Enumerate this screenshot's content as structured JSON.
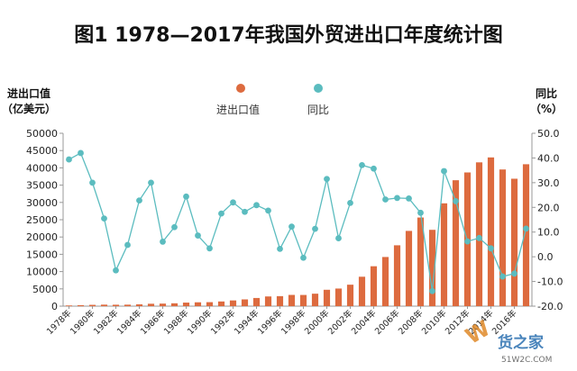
{
  "chart_data": {
    "type": "bar+line",
    "title": "图1  1978—2017年我国外贸进出口年度统计图",
    "ylabel_left": [
      "进出口值",
      "（亿美元）"
    ],
    "ylabel_right": [
      "同比",
      "（%）"
    ],
    "legend": [
      {
        "name": "进出口值",
        "color": "#dd6b3f",
        "marker": "circle"
      },
      {
        "name": "同比",
        "color": "#5bbcbf",
        "marker": "circle"
      }
    ],
    "legend_placement": "top-center",
    "grid": false,
    "ylim_left": [
      0,
      50000
    ],
    "yticks_left": [
      "0",
      "5000",
      "10000",
      "15000",
      "20000",
      "25000",
      "30000",
      "35000",
      "40000",
      "45000",
      "50000"
    ],
    "ylim_right": [
      -20,
      50
    ],
    "yticks_right": [
      "-20.0",
      "-10.0",
      "0.0",
      "10.0",
      "20.0",
      "30.0",
      "40.0",
      "50.0"
    ],
    "x_tick_labels": [
      "1978年",
      "1980年",
      "1982年",
      "1984年",
      "1986年",
      "1988年",
      "1990年",
      "1992年",
      "1994年",
      "1996年",
      "1998年",
      "2000年",
      "2002年",
      "2004年",
      "2006年",
      "2008年",
      "2010年",
      "2012年",
      "2014年",
      "2016年"
    ],
    "years": [
      1978,
      1979,
      1980,
      1981,
      1982,
      1983,
      1984,
      1985,
      1986,
      1987,
      1988,
      1989,
      1990,
      1991,
      1992,
      1993,
      1994,
      1995,
      1996,
      1997,
      1998,
      1999,
      2000,
      2001,
      2002,
      2003,
      2004,
      2005,
      2006,
      2007,
      2008,
      2009,
      2010,
      2011,
      2012,
      2013,
      2014,
      2015,
      2016,
      2017
    ],
    "series": [
      {
        "name": "进出口值",
        "kind": "bar",
        "axis": "left",
        "color": "#dd6b3f",
        "values": [
          206,
          293,
          381,
          440,
          416,
          436,
          535,
          696,
          738,
          827,
          1028,
          1117,
          1154,
          1357,
          1655,
          1957,
          2366,
          2809,
          2899,
          3252,
          3239,
          3606,
          4743,
          5097,
          6208,
          8510,
          11546,
          14219,
          17604,
          21766,
          25633,
          22075,
          29740,
          36419,
          38671,
          41590,
          43015,
          39530,
          36856,
          41045
        ]
      },
      {
        "name": "同比",
        "kind": "line",
        "axis": "right",
        "color": "#5bbcbf",
        "values": [
          39.4,
          42.0,
          30.0,
          15.5,
          -5.5,
          4.8,
          22.8,
          30.0,
          6.1,
          12.0,
          24.4,
          8.6,
          3.4,
          17.5,
          22.0,
          18.2,
          20.9,
          18.7,
          3.2,
          12.2,
          -0.4,
          11.3,
          31.5,
          7.5,
          21.8,
          37.1,
          35.7,
          23.2,
          23.8,
          23.6,
          17.8,
          -13.9,
          34.7,
          22.5,
          6.2,
          7.6,
          3.4,
          -8.0,
          -6.8,
          11.4
        ]
      }
    ]
  },
  "watermark": {
    "brand": "货之家",
    "url": "51W2C.COM",
    "logo_letter": "W"
  }
}
